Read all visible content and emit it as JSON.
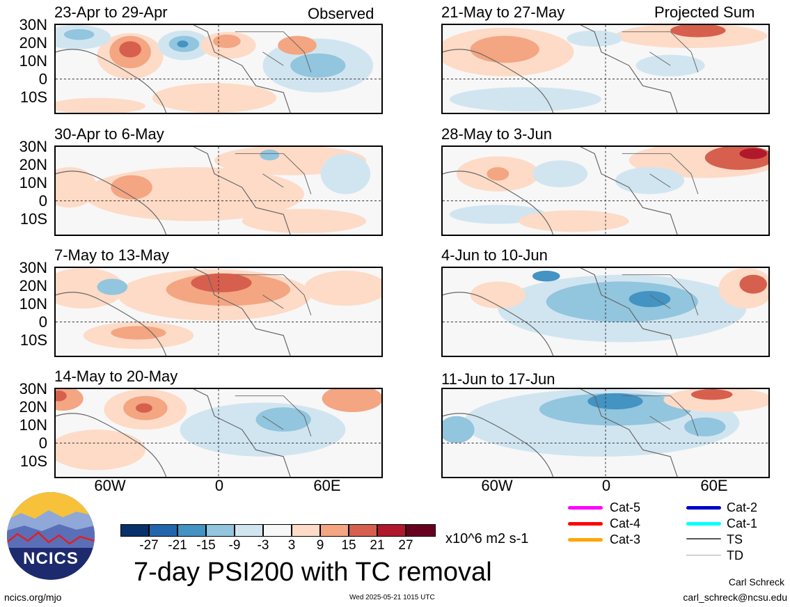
{
  "left_column": {
    "panels": [
      {
        "title": "23-Apr to 29-Apr",
        "tag": "Observed"
      },
      {
        "title": "30-Apr to 6-May",
        "tag": ""
      },
      {
        "title": "7-May to 13-May",
        "tag": ""
      },
      {
        "title": "14-May to 20-May",
        "tag": ""
      }
    ]
  },
  "right_column": {
    "panels": [
      {
        "title": "21-May to 27-May",
        "tag": "Projected Sum"
      },
      {
        "title": "28-May to 3-Jun",
        "tag": ""
      },
      {
        "title": "4-Jun to 10-Jun",
        "tag": ""
      },
      {
        "title": "11-Jun to 17-Jun",
        "tag": ""
      }
    ]
  },
  "axes": {
    "lat_labels": [
      "30N",
      "20N",
      "10N",
      "0",
      "10S"
    ],
    "lon_labels": [
      "60W",
      "0",
      "60E"
    ]
  },
  "colorbar": {
    "tick_labels": [
      "-27",
      "-21",
      "-15",
      "-9",
      "-3",
      "3",
      "9",
      "15",
      "21",
      "27"
    ],
    "colors": [
      "#08306b",
      "#2166ac",
      "#4393c3",
      "#92c5de",
      "#d1e5f0",
      "#f7f7f7",
      "#fddbc7",
      "#f4a582",
      "#d6604d",
      "#b2182b",
      "#67001f"
    ],
    "units": "x10^6 m2 s-1"
  },
  "legend": {
    "items": [
      {
        "label": "Cat-5",
        "color": "#ff00ff"
      },
      {
        "label": "Cat-4",
        "color": "#ff0000"
      },
      {
        "label": "Cat-3",
        "color": "#ffa500"
      },
      {
        "label": "Cat-2",
        "color": "#0000cd"
      },
      {
        "label": "Cat-1",
        "color": "#00ffff"
      },
      {
        "label": "TS",
        "color": "#555555"
      },
      {
        "label": "TD",
        "color": "#aaaaaa"
      }
    ]
  },
  "main_title": "7-day PSI200 with TC removal",
  "logo_text": "NCICS",
  "footer": {
    "url": "ncics.org/mjo",
    "timestamp": "Wed 2025-05-21 1015 UTC",
    "author": "Carl Schreck",
    "email": "carl_schreck@ncsu.edu"
  }
}
